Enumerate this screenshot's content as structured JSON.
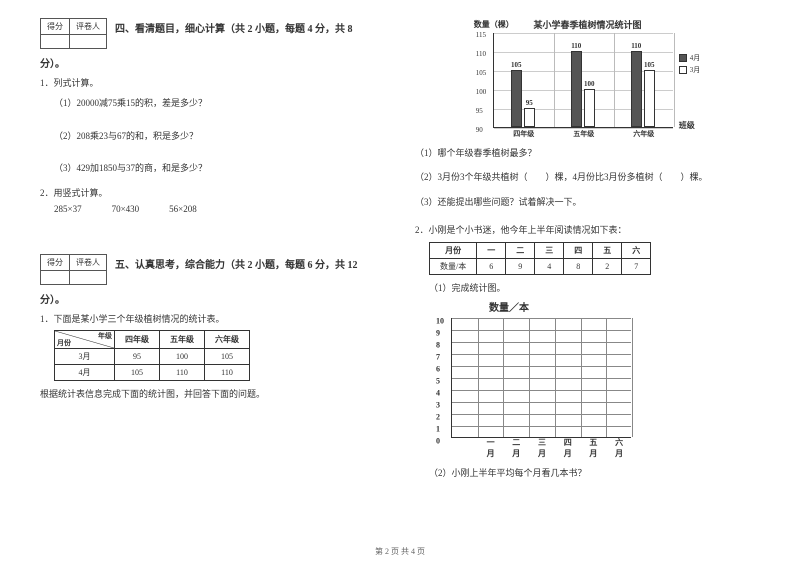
{
  "footer": "第 2 页 共 4 页",
  "left": {
    "scorebox": {
      "c1": "得分",
      "c2": "评卷人"
    },
    "section4": {
      "title": "四、看清题目，细心计算（共 2 小题，每题 4 分，共 8",
      "title_tail": "分）。",
      "q1": "1．列式计算。",
      "q1a": "（1）20000减75乘15的积，差是多少？",
      "q1b": "（2）208乘23与67的和，积是多少？",
      "q1c": "（3）429加1850与37的商，和是多少？",
      "q2": "2．用竖式计算。",
      "calc": {
        "a": "285×37",
        "b": "70×430",
        "c": "56×208"
      }
    },
    "section5": {
      "title": "五、认真思考，综合能力（共 2 小题，每题 6 分，共 12",
      "title_tail": "分）。",
      "q1": "1．下面是某小学三个年级植树情况的统计表。",
      "table": {
        "hdr_diag_top": "年级",
        "hdr_diag_bottom": "月份",
        "cols": [
          "四年级",
          "五年级",
          "六年级"
        ],
        "rows": [
          {
            "label": "3月",
            "vals": [
              "95",
              "100",
              "105"
            ]
          },
          {
            "label": "4月",
            "vals": [
              "105",
              "110",
              "110"
            ]
          }
        ]
      },
      "q1_note": "根据统计表信息完成下面的统计图，并回答下面的问题。"
    }
  },
  "right": {
    "chart": {
      "title": "某小学春季植树情况统计图",
      "ylabel": "数量（棵）",
      "xlabel": "班级",
      "ylim": [
        90,
        115
      ],
      "yticks": [
        90,
        95,
        100,
        105,
        110,
        115
      ],
      "categories": [
        "四年级",
        "五年级",
        "六年级"
      ],
      "series": [
        {
          "name": "4月",
          "color": "#555555",
          "values": [
            105,
            110,
            110
          ]
        },
        {
          "name": "3月",
          "color": "#ffffff",
          "values": [
            95,
            100,
            105
          ]
        }
      ],
      "bar_border": "#333333",
      "grid_color": "#cccccc"
    },
    "q_a": "（1）哪个年级春季植树最多？",
    "q_b": "（2）3月份3个年级共植树（　　）棵，4月份比3月份多植树（　　）棵。",
    "q_c": "（3）还能提出哪些问题？试着解决一下。",
    "q2": "2．小刚是个小书迷，他今年上半年阅读情况如下表：",
    "table2": {
      "r1": [
        "月份",
        "一",
        "二",
        "三",
        "四",
        "五",
        "六"
      ],
      "r2": [
        "数量/本",
        "6",
        "9",
        "4",
        "8",
        "2",
        "7"
      ]
    },
    "q2a": "（1）完成统计图。",
    "blank_chart": {
      "title": "数量／本",
      "yticks": [
        "0",
        "1",
        "2",
        "3",
        "4",
        "5",
        "6",
        "7",
        "8",
        "9",
        "10"
      ],
      "xticks": [
        "一月",
        "二月",
        "三月",
        "四月",
        "五月",
        "六月"
      ]
    },
    "q2b": "（2）小刚上半年平均每个月看几本书？"
  }
}
